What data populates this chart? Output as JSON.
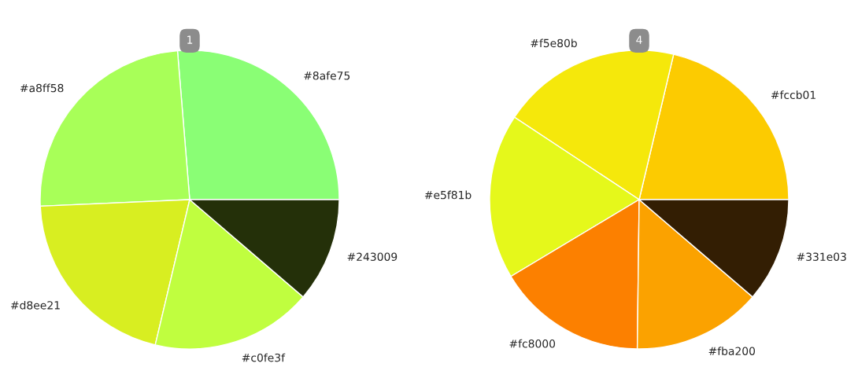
{
  "chart_data": [
    {
      "type": "pie",
      "title": "1",
      "categories": [
        "#8afe75",
        "#a8ff58",
        "#d8ee21",
        "#c0fe3f",
        "#243009"
      ],
      "values": [
        26.3,
        24.4,
        20.6,
        17.4,
        11.3
      ],
      "colors": [
        "#8afe75",
        "#a8ff58",
        "#d8ee21",
        "#c0fe3f",
        "#243009"
      ]
    },
    {
      "type": "pie",
      "title": "4",
      "categories": [
        "#fccb01",
        "#f5e80b",
        "#e5f81b",
        "#fc8000",
        "#fba200",
        "#331e03"
      ],
      "values": [
        21.3,
        19.4,
        17.9,
        16.2,
        13.9,
        11.3
      ],
      "colors": [
        "#fccb01",
        "#f5e80b",
        "#e5f81b",
        "#fc8000",
        "#fba200",
        "#331e03"
      ]
    }
  ]
}
